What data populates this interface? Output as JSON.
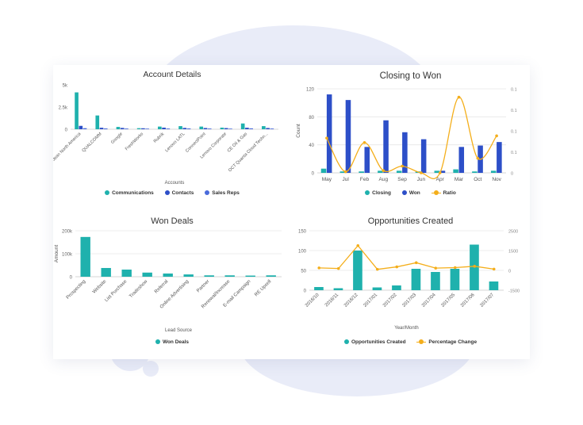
{
  "colors": {
    "teal": "#1fb1ad",
    "blue": "#2d4fc8",
    "royal": "#4a6bdb",
    "orange": "#f4ae1a"
  },
  "panels": [
    {
      "title": "Account Details",
      "legend": [
        "Communications",
        "Contacts",
        "Sales Reps"
      ]
    },
    {
      "title": "Closing to Won",
      "legend": [
        "Closing",
        "Won",
        "Ratio"
      ]
    },
    {
      "title": "Won Deals",
      "legend": [
        "Won Deals"
      ]
    },
    {
      "title": "Opportunities Created",
      "legend": [
        "Opportunities Created",
        "Percentage Change"
      ]
    }
  ],
  "chart_data": [
    {
      "type": "bar",
      "title": "Account Details",
      "xlabel": "Accounts",
      "ylabel": "",
      "ylim": [
        0,
        5000
      ],
      "yticks": [
        "0",
        "2.5k",
        "5k"
      ],
      "categories": [
        "Jean North America",
        "QUALCOMM",
        "Google",
        "FreshWorks",
        "Rubrik",
        "Lenovo LATL",
        "ConnectPoint",
        "Lenovo Corporate",
        "CE Oil & Gas",
        "OCT Quanta Cloud Techn..."
      ],
      "series": [
        {
          "name": "Communications",
          "values": [
            4150,
            1550,
            260,
            120,
            300,
            350,
            300,
            180,
            650,
            350
          ]
        },
        {
          "name": "Contacts",
          "values": [
            380,
            170,
            150,
            110,
            180,
            150,
            140,
            130,
            170,
            140
          ]
        },
        {
          "name": "Sales Reps",
          "values": [
            120,
            90,
            80,
            70,
            80,
            90,
            80,
            70,
            100,
            80
          ]
        }
      ],
      "legend": "bottom",
      "grid": false
    },
    {
      "type": "bar",
      "title": "Closing to Won",
      "xlabel": "",
      "ylabel": "Count",
      "ylim": [
        0,
        120
      ],
      "yticks": [
        "0",
        "40",
        "80",
        "120"
      ],
      "y2lim": [
        0,
        0.15
      ],
      "y2ticks": [
        "0",
        "0.1",
        "0.1",
        "0.1",
        "0.1"
      ],
      "categories": [
        "May",
        "Jul",
        "Feb",
        "Aug",
        "Sep",
        "Jun",
        "Apr",
        "Mar",
        "Oct",
        "Nov"
      ],
      "series": [
        {
          "name": "Closing",
          "values": [
            6,
            2,
            2,
            3,
            3,
            2,
            3,
            5,
            2,
            3
          ]
        },
        {
          "name": "Won",
          "values": [
            112,
            104,
            37,
            75,
            58,
            48,
            3,
            37,
            39,
            44
          ]
        },
        {
          "name": "Ratio",
          "axis": "right",
          "values": [
            0.062,
            0.002,
            0.054,
            0.004,
            0.012,
            0.0,
            0.0,
            0.135,
            0.026,
            0.066
          ]
        }
      ],
      "legend": "bottom",
      "grid": true
    },
    {
      "type": "bar",
      "title": "Won Deals",
      "xlabel": "Lead Source",
      "ylabel": "Amount",
      "ylim": [
        0,
        200000
      ],
      "yticks": [
        "0",
        "100k",
        "200k"
      ],
      "categories": [
        "Prospecting",
        "Website",
        "List Purchase",
        "Tradeshow",
        "Referral",
        "Online Advertising",
        "Partner",
        "Renewal/Increase",
        "E-mail Campaign",
        "RE Upsell"
      ],
      "series": [
        {
          "name": "Won Deals",
          "values": [
            173000,
            38000,
            31000,
            18000,
            14000,
            10000,
            6000,
            6000,
            5000,
            6000
          ]
        }
      ],
      "legend": "bottom",
      "grid": true
    },
    {
      "type": "bar",
      "title": "Opportunities Created",
      "xlabel": "Year/Month",
      "ylabel": "",
      "ylim": [
        0,
        150
      ],
      "yticks": [
        "0",
        "50",
        "100",
        "150"
      ],
      "y2lim": [
        -1500,
        2500
      ],
      "y2ticks": [
        "-1500",
        "0",
        "1500",
        "2500"
      ],
      "categories": [
        "2016/10",
        "2016/11",
        "2016/12",
        "2017/01",
        "2017/02",
        "2017/03",
        "2017/04",
        "2017/05",
        "2017/06",
        "2017/07"
      ],
      "series": [
        {
          "name": "Opportunities Created",
          "values": [
            8,
            5,
            100,
            7,
            12,
            54,
            46,
            54,
            115,
            22
          ]
        },
        {
          "name": "Percentage Change",
          "axis": "right",
          "values": [
            0,
            -40,
            1500,
            -95,
            70,
            350,
            -15,
            20,
            110,
            -80
          ]
        }
      ],
      "legend": "bottom",
      "grid": true
    }
  ]
}
